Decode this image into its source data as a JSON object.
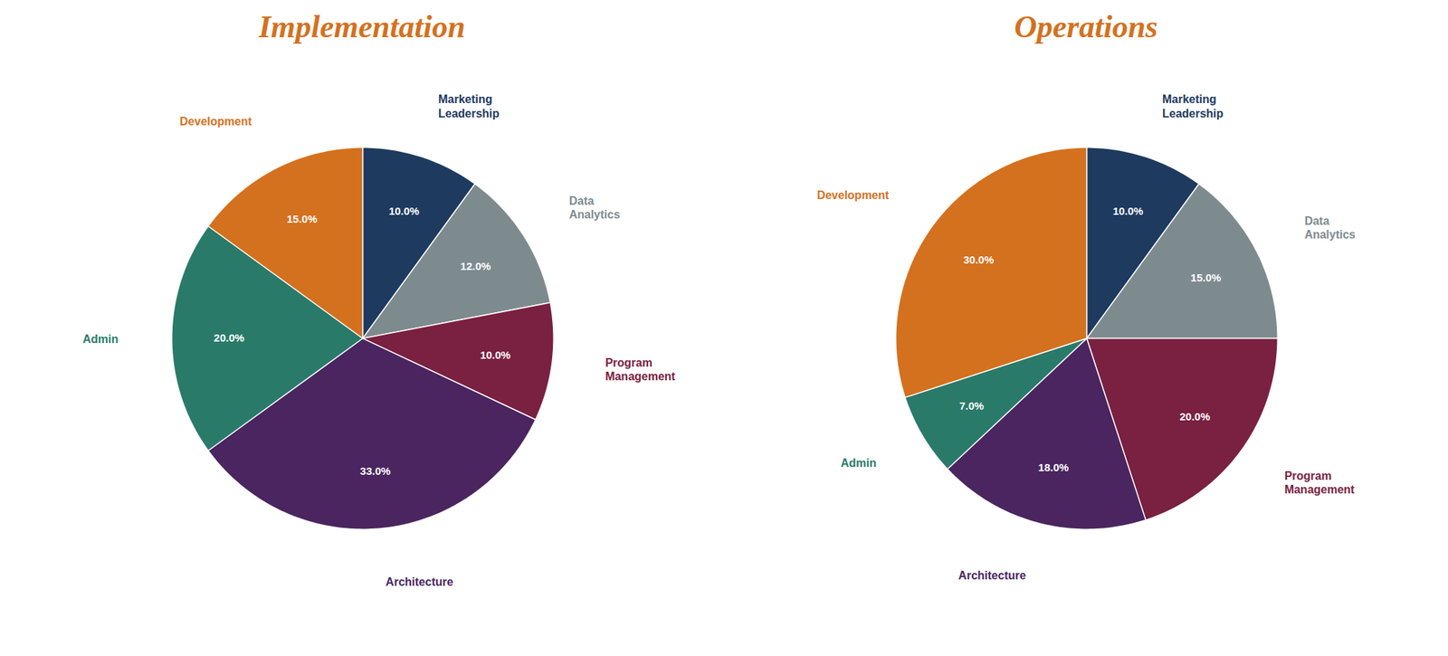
{
  "chart_data": [
    {
      "type": "pie",
      "title": "Implementation",
      "categories": [
        "Marketing\nLeadership",
        "Data\nAnalytics",
        "Program\nManagement",
        "Architecture",
        "Admin",
        "Development"
      ],
      "values": [
        10.0,
        12.0,
        10.0,
        33.0,
        20.0,
        15.0
      ],
      "value_labels": [
        "10.0%",
        "12.0%",
        "10.0%",
        "33.0%",
        "20.0%",
        "15.0%"
      ],
      "colors": [
        "#1e3a5f",
        "#7d8b8f",
        "#7a2040",
        "#4a2560",
        "#2a7a6a",
        "#d4711e"
      ],
      "data_labels": true
    },
    {
      "type": "pie",
      "title": "Operations",
      "categories": [
        "Marketing\nLeadership",
        "Data\nAnalytics",
        "Program\nManagement",
        "Architecture",
        "Admin",
        "Development"
      ],
      "values": [
        10.0,
        15.0,
        20.0,
        18.0,
        7.0,
        30.0
      ],
      "value_labels": [
        "10.0%",
        "15.0%",
        "20.0%",
        "18.0%",
        "7.0%",
        "30.0%"
      ],
      "colors": [
        "#1e3a5f",
        "#7d8b8f",
        "#7a2040",
        "#4a2560",
        "#2a7a6a",
        "#d4711e"
      ],
      "data_labels": true
    }
  ]
}
